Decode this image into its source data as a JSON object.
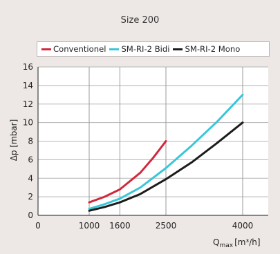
{
  "chart_data": {
    "type": "line",
    "title": "Size 200",
    "xlabel": "Q",
    "xlabel_sub": "max",
    "xlabel_unit": "[m³/h]",
    "ylabel": "Δp [mbar]",
    "xlim": [
      0,
      4500
    ],
    "ylim": [
      0,
      16
    ],
    "x_ticks": [
      0,
      1000,
      1600,
      2500,
      4000
    ],
    "y_ticks": [
      0,
      2,
      4,
      6,
      8,
      10,
      12,
      14,
      16
    ],
    "grid": true,
    "legend_position": "top",
    "series": [
      {
        "name": "Conventionel",
        "color": "#d0283c",
        "points": [
          [
            1000,
            1.4
          ],
          [
            1300,
            2.0
          ],
          [
            1600,
            2.8
          ],
          [
            2000,
            4.6
          ],
          [
            2250,
            6.2
          ],
          [
            2500,
            8.0
          ]
        ]
      },
      {
        "name": "SM-RI-2 Bidi",
        "color": "#39c6d9",
        "points": [
          [
            1000,
            0.7
          ],
          [
            1300,
            1.2
          ],
          [
            1600,
            1.8
          ],
          [
            2000,
            3.0
          ],
          [
            2500,
            5.1
          ],
          [
            3000,
            7.5
          ],
          [
            3500,
            10.1
          ],
          [
            4000,
            13.0
          ]
        ]
      },
      {
        "name": "SM-RI-2 Mono",
        "color": "#1c1c1c",
        "points": [
          [
            1000,
            0.5
          ],
          [
            1300,
            0.9
          ],
          [
            1600,
            1.4
          ],
          [
            2000,
            2.3
          ],
          [
            2500,
            3.9
          ],
          [
            3000,
            5.7
          ],
          [
            3500,
            7.8
          ],
          [
            4000,
            10.0
          ]
        ]
      }
    ]
  }
}
